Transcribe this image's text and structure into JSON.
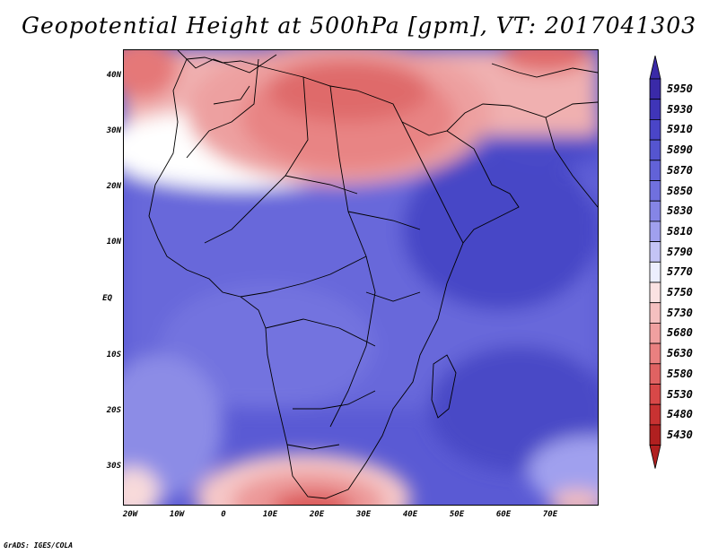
{
  "title": "Geopotential Height at 500hPa [gpm], VT: 2017041303",
  "credit": "GrADS: IGES/COLA",
  "axes": {
    "y_labels": [
      "40N",
      "30N",
      "20N",
      "10N",
      "EQ",
      "10S",
      "20S",
      "30S"
    ],
    "x_labels": [
      "20W",
      "10W",
      "0",
      "10E",
      "20E",
      "30E",
      "40E",
      "50E",
      "60E",
      "70E"
    ]
  },
  "colorbar": {
    "levels": [
      "5950",
      "5930",
      "5910",
      "5890",
      "5870",
      "5850",
      "5830",
      "5810",
      "5790",
      "5770",
      "5750",
      "5730",
      "5680",
      "5630",
      "5580",
      "5530",
      "5480",
      "5430"
    ],
    "colors": [
      "#3a2aa8",
      "#3f35b8",
      "#4a45c8",
      "#5555d0",
      "#6262d8",
      "#7070de",
      "#8585e6",
      "#a0a0ee",
      "#c4c4f6",
      "#eceefe",
      "#fbe2e2",
      "#f5c0c0",
      "#f0a0a0",
      "#ea8080",
      "#e06262",
      "#d84848",
      "#c83232",
      "#b02020"
    ]
  }
}
